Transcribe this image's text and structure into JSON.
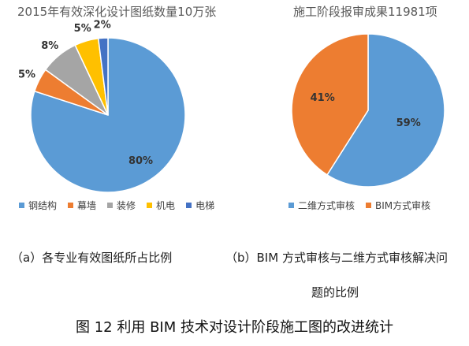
{
  "chart_data": [
    {
      "type": "pie",
      "title": "2015年有效深化设计图纸数量10万张",
      "categories": [
        "钢结构",
        "幕墙",
        "装修",
        "机电",
        "电梯"
      ],
      "values": [
        80,
        5,
        8,
        5,
        2
      ],
      "value_labels": [
        "80%",
        "5%",
        "8%",
        "5%",
        "2%"
      ],
      "colors": [
        "#5B9BD5",
        "#ED7D31",
        "#A5A5A5",
        "#FFC000",
        "#4472C4"
      ],
      "legend": "bottom"
    },
    {
      "type": "pie",
      "title": "施工阶段报审成果11981项",
      "categories": [
        "二维方式审核",
        "BIM方式审核"
      ],
      "values": [
        59,
        41
      ],
      "value_labels": [
        "59%",
        "41%"
      ],
      "colors": [
        "#5B9BD5",
        "#ED7D31"
      ],
      "legend": "bottom"
    }
  ],
  "captions": {
    "a": "（a）各专业有效图纸所占比例",
    "b_line1": "（b）BIM 方式审核与二维方式审核解决问",
    "b_line2": "题的比例",
    "figure": "图 12 利用 BIM 技术对设计阶段施工图的改进统计"
  }
}
